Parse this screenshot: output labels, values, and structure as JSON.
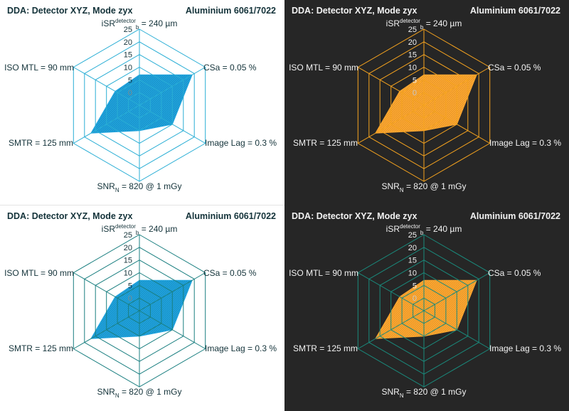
{
  "chart_data": [
    {
      "type": "radar",
      "title_left": "DDA: Detector XYZ, Mode zyx",
      "title_right": "Aluminium 6061/7022",
      "axes": [
        {
          "label": "iSR",
          "sub": "b",
          "sup": "detector",
          "rest": " = 240 µm"
        },
        {
          "label": "CSa = 0.05 %"
        },
        {
          "label": "Image Lag = 0.3 %"
        },
        {
          "label": "SNR",
          "sub": "N",
          "rest": " = 820 @ 1 mGy"
        },
        {
          "label": "SMTR = 125 mm"
        },
        {
          "label": "ISO MTL = 90 mm"
        }
      ],
      "ticks": [
        "25",
        "20",
        "15",
        "10",
        "5",
        "0"
      ],
      "rlim": [
        -5,
        25
      ],
      "values": [
        7,
        19,
        10,
        5,
        17,
        6
      ],
      "grid_style": "hexagon",
      "colors": {
        "background": "#ffffff",
        "grid": "#2aaed5",
        "fill": "#1fa3de",
        "text": "#14333a",
        "tick": "#14333a",
        "zero_tick": "#7a8c90"
      }
    },
    {
      "type": "radar",
      "title_left": "DDA: Detector XYZ, Mode zyx",
      "title_right": "Aluminium 6061/7022",
      "axes": [
        {
          "label": "iSR",
          "sub": "b",
          "sup": "detector",
          "rest": " = 240 µm"
        },
        {
          "label": "CSa = 0.05 %"
        },
        {
          "label": "Image Lag = 0.3 %"
        },
        {
          "label": "SNR",
          "sub": "N",
          "rest": " = 820 @ 1 mGy"
        },
        {
          "label": "SMTR = 125 mm"
        },
        {
          "label": "ISO MTL = 90 mm"
        }
      ],
      "ticks": [
        "25",
        "20",
        "15",
        "10",
        "5",
        "0"
      ],
      "rlim": [
        -5,
        25
      ],
      "values": [
        7,
        19,
        10,
        5,
        17,
        6
      ],
      "grid_style": "hexagon",
      "colors": {
        "background": "#262626",
        "grid": "#f5a31f",
        "fill": "#ffa830",
        "text": "#f2f2f2",
        "tick": "#f2f2f2",
        "zero_tick": "#c8c8c8"
      }
    },
    {
      "type": "radar",
      "title_left": "DDA: Detector XYZ, Mode zyx",
      "title_right": "Aluminium 6061/7022",
      "axes": [
        {
          "label": "iSR",
          "sub": "b",
          "sup": "detector",
          "rest": " = 240 µm"
        },
        {
          "label": "CSa = 0.05 %"
        },
        {
          "label": "Image Lag = 0.3 %"
        },
        {
          "label": "SNR",
          "sub": "N",
          "rest": " = 820 @ 1 mGy"
        },
        {
          "label": "SMTR = 125 mm"
        },
        {
          "label": "ISO MTL = 90 mm"
        }
      ],
      "ticks": [
        "25",
        "20",
        "15",
        "10",
        "5",
        "0"
      ],
      "rlim": [
        -5,
        25
      ],
      "values": [
        7,
        19,
        10,
        5,
        17,
        6
      ],
      "grid_style": "hexagon",
      "colors": {
        "background": "#ffffff",
        "grid": "#1a7f80",
        "fill": "#1fa3de",
        "text": "#14333a",
        "tick": "#14333a",
        "zero_tick": "#7a8c90"
      }
    },
    {
      "type": "radar",
      "title_left": "DDA: Detector XYZ, Mode zyx",
      "title_right": "Aluminium 6061/7022",
      "axes": [
        {
          "label": "iSR",
          "sub": "b",
          "sup": "detector",
          "rest": " = 240 µm"
        },
        {
          "label": "CSa = 0.05 %"
        },
        {
          "label": "Image Lag = 0.3 %"
        },
        {
          "label": "SNR",
          "sub": "N",
          "rest": " = 820 @ 1 mGy"
        },
        {
          "label": "SMTR = 125 mm"
        },
        {
          "label": "ISO MTL = 90 mm"
        }
      ],
      "ticks": [
        "25",
        "20",
        "15",
        "10",
        "5",
        "0"
      ],
      "rlim": [
        -5,
        25
      ],
      "values": [
        7,
        19,
        10,
        5,
        17,
        6
      ],
      "grid_style": "hexagon",
      "colors": {
        "background": "#262626",
        "grid": "#1a8a7c",
        "fill": "#ffa830",
        "text": "#f2f2f2",
        "tick": "#f2f2f2",
        "zero_tick": "#c8c8c8"
      }
    }
  ]
}
